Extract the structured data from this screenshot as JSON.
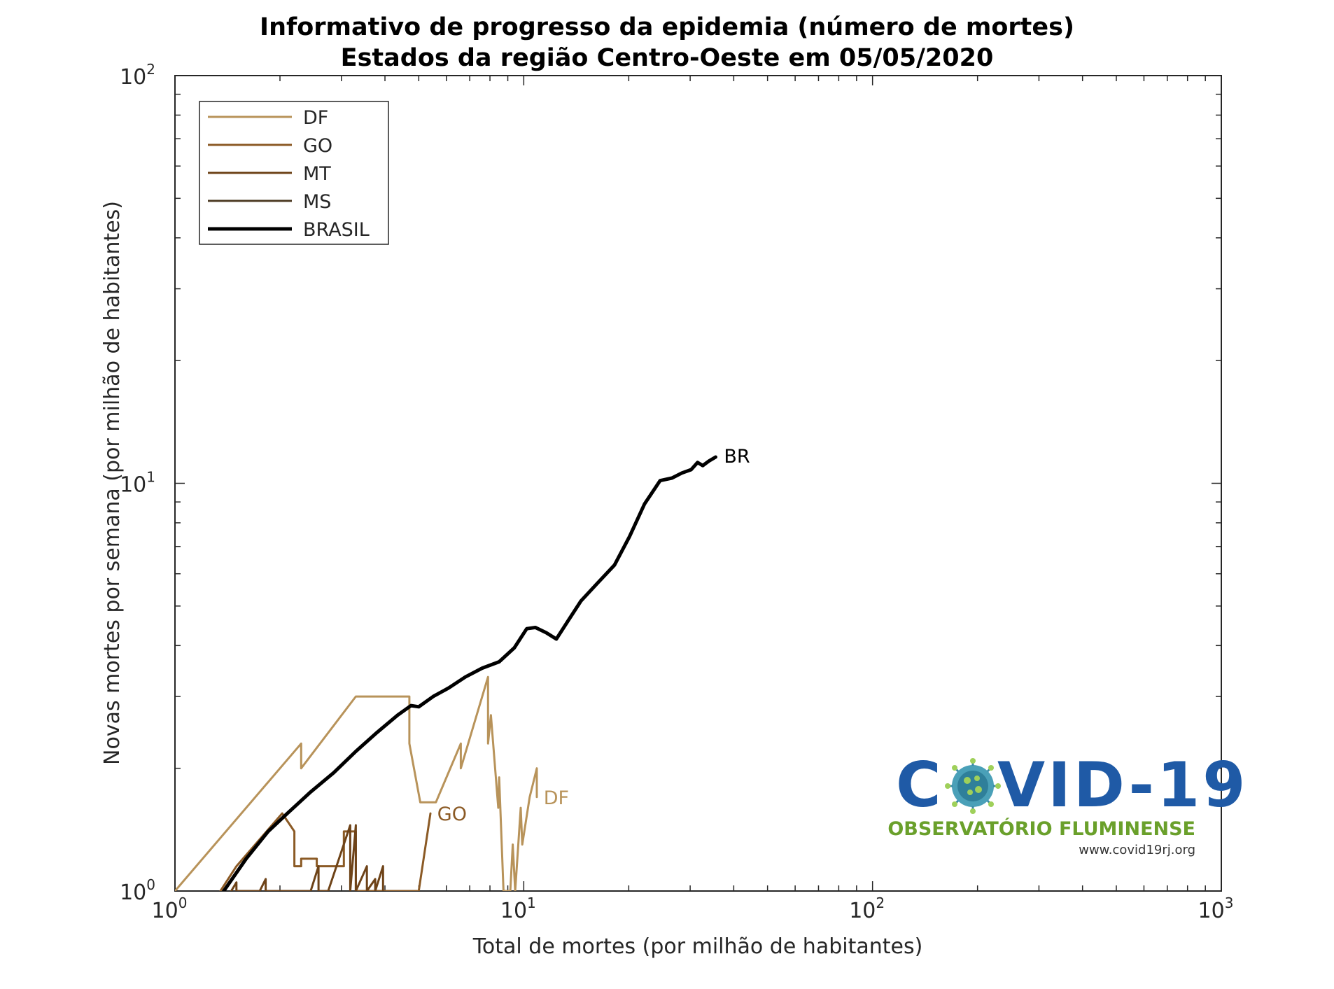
{
  "chart_data": {
    "type": "line",
    "title_line1": "Informativo de progresso da epidemia (número de mortes)",
    "title_line2": "Estados da região Centro-Oeste em 05/05/2020",
    "xlabel": "Total de mortes (por milhão de habitantes)",
    "ylabel": "Novas mortes por semana (por milhão de habitantes)",
    "xscale": "log",
    "yscale": "log",
    "xlim": [
      1,
      1000
    ],
    "ylim": [
      1,
      100
    ],
    "x_ticks": [
      {
        "value": 1,
        "base": "10",
        "exp": "0"
      },
      {
        "value": 10,
        "base": "10",
        "exp": "1"
      },
      {
        "value": 100,
        "base": "10",
        "exp": "2"
      },
      {
        "value": 1000,
        "base": "10",
        "exp": "3"
      }
    ],
    "y_ticks": [
      {
        "value": 1,
        "base": "10",
        "exp": "0"
      },
      {
        "value": 10,
        "base": "10",
        "exp": "1"
      },
      {
        "value": 100,
        "base": "10",
        "exp": "2"
      }
    ],
    "grid": false,
    "legend_position": "top-left",
    "series": [
      {
        "name": "DF",
        "label": "DF",
        "color": "#b8935a",
        "width": 3,
        "points": [
          [
            1.0,
            1.0
          ],
          [
            2.3,
            2.3
          ],
          [
            2.3,
            2.0
          ],
          [
            3.3,
            3.0
          ],
          [
            4.7,
            3.0
          ],
          [
            4.7,
            2.3
          ],
          [
            5.05,
            1.65
          ],
          [
            5.6,
            1.65
          ],
          [
            6.6,
            2.3
          ],
          [
            6.6,
            2.0
          ],
          [
            7.9,
            3.35
          ],
          [
            7.9,
            2.3
          ],
          [
            8.05,
            2.7
          ],
          [
            8.45,
            1.6
          ],
          [
            8.5,
            1.9
          ],
          [
            8.75,
            1.0
          ],
          [
            9.15,
            1.0
          ],
          [
            9.3,
            1.3
          ],
          [
            9.45,
            1.0
          ],
          [
            9.8,
            1.6
          ],
          [
            9.9,
            1.3
          ],
          [
            10.4,
            1.7
          ],
          [
            10.9,
            2.0
          ],
          [
            10.9,
            1.7
          ]
        ],
        "label_at": [
          11.4,
          1.7
        ]
      },
      {
        "name": "GO",
        "label": "GO",
        "color": "#8b5a25",
        "width": 3,
        "points": [
          [
            1.35,
            1.0
          ],
          [
            1.5,
            1.15
          ],
          [
            2.03,
            1.55
          ],
          [
            2.2,
            1.4
          ],
          [
            2.2,
            1.15
          ],
          [
            2.3,
            1.15
          ],
          [
            2.3,
            1.2
          ],
          [
            2.55,
            1.2
          ],
          [
            2.55,
            1.15
          ],
          [
            3.05,
            1.15
          ],
          [
            3.05,
            1.4
          ],
          [
            3.3,
            1.4
          ],
          [
            3.3,
            1.0
          ],
          [
            5.0,
            1.0
          ],
          [
            5.4,
            1.55
          ]
        ],
        "label_at": [
          5.65,
          1.55
        ]
      },
      {
        "name": "MT",
        "label": "MT",
        "color": "#6e4318",
        "width": 3,
        "points": [
          [
            1.45,
            1.0
          ],
          [
            1.5,
            1.05
          ],
          [
            1.5,
            1.0
          ],
          [
            1.75,
            1.0
          ],
          [
            1.82,
            1.07
          ],
          [
            1.82,
            1.0
          ],
          [
            2.45,
            1.0
          ],
          [
            2.58,
            1.15
          ],
          [
            2.58,
            1.0
          ],
          [
            2.75,
            1.0
          ],
          [
            3.18,
            1.45
          ],
          [
            3.18,
            1.0
          ],
          [
            3.3,
            1.45
          ],
          [
            3.3,
            1.0
          ],
          [
            3.55,
            1.15
          ],
          [
            3.55,
            1.0
          ],
          [
            3.75,
            1.07
          ],
          [
            3.75,
            1.0
          ],
          [
            3.95,
            1.15
          ],
          [
            3.95,
            1.0
          ]
        ],
        "label_at": [
          4.45,
          0.55
        ]
      },
      {
        "name": "MS",
        "label": "",
        "color": "#4e3c25",
        "width": 3,
        "points": [],
        "label_at": null
      },
      {
        "name": "BRASIL",
        "label": "BR",
        "color": "#000000",
        "width": 5,
        "points": [
          [
            1.38,
            1.0
          ],
          [
            1.6,
            1.2
          ],
          [
            1.85,
            1.4
          ],
          [
            2.1,
            1.55
          ],
          [
            2.45,
            1.75
          ],
          [
            2.85,
            1.95
          ],
          [
            3.3,
            2.2
          ],
          [
            3.8,
            2.45
          ],
          [
            4.35,
            2.7
          ],
          [
            4.75,
            2.85
          ],
          [
            5.0,
            2.83
          ],
          [
            5.5,
            3.0
          ],
          [
            6.1,
            3.15
          ],
          [
            6.8,
            3.35
          ],
          [
            7.6,
            3.52
          ],
          [
            8.5,
            3.65
          ],
          [
            9.4,
            3.95
          ],
          [
            10.2,
            4.4
          ],
          [
            10.8,
            4.43
          ],
          [
            11.6,
            4.3
          ],
          [
            12.4,
            4.15
          ],
          [
            13.4,
            4.6
          ],
          [
            14.6,
            5.15
          ],
          [
            16.3,
            5.7
          ],
          [
            18.2,
            6.3
          ],
          [
            20.1,
            7.4
          ],
          [
            22.2,
            8.9
          ],
          [
            24.6,
            10.15
          ],
          [
            26.6,
            10.3
          ],
          [
            28.4,
            10.6
          ],
          [
            30.2,
            10.8
          ],
          [
            31.5,
            11.25
          ],
          [
            32.6,
            11.05
          ],
          [
            34.0,
            11.35
          ],
          [
            35.5,
            11.6
          ]
        ],
        "label_at": [
          37.5,
          11.7
        ]
      }
    ],
    "legend": [
      {
        "name": "DF",
        "color": "#b8935a",
        "width": 3
      },
      {
        "name": "GO",
        "color": "#8b5a25",
        "width": 3
      },
      {
        "name": "MT",
        "color": "#6e4318",
        "width": 3
      },
      {
        "name": "MS",
        "color": "#4e3c25",
        "width": 3
      },
      {
        "name": "BRASIL",
        "color": "#000000",
        "width": 5
      }
    ]
  },
  "logo": {
    "main_text_left": "C",
    "main_text_right": "VID-19",
    "subtitle": "OBSERVATÓRIO FLUMINENSE",
    "url": "www.covid19rj.org",
    "icon": "virus-icon"
  }
}
